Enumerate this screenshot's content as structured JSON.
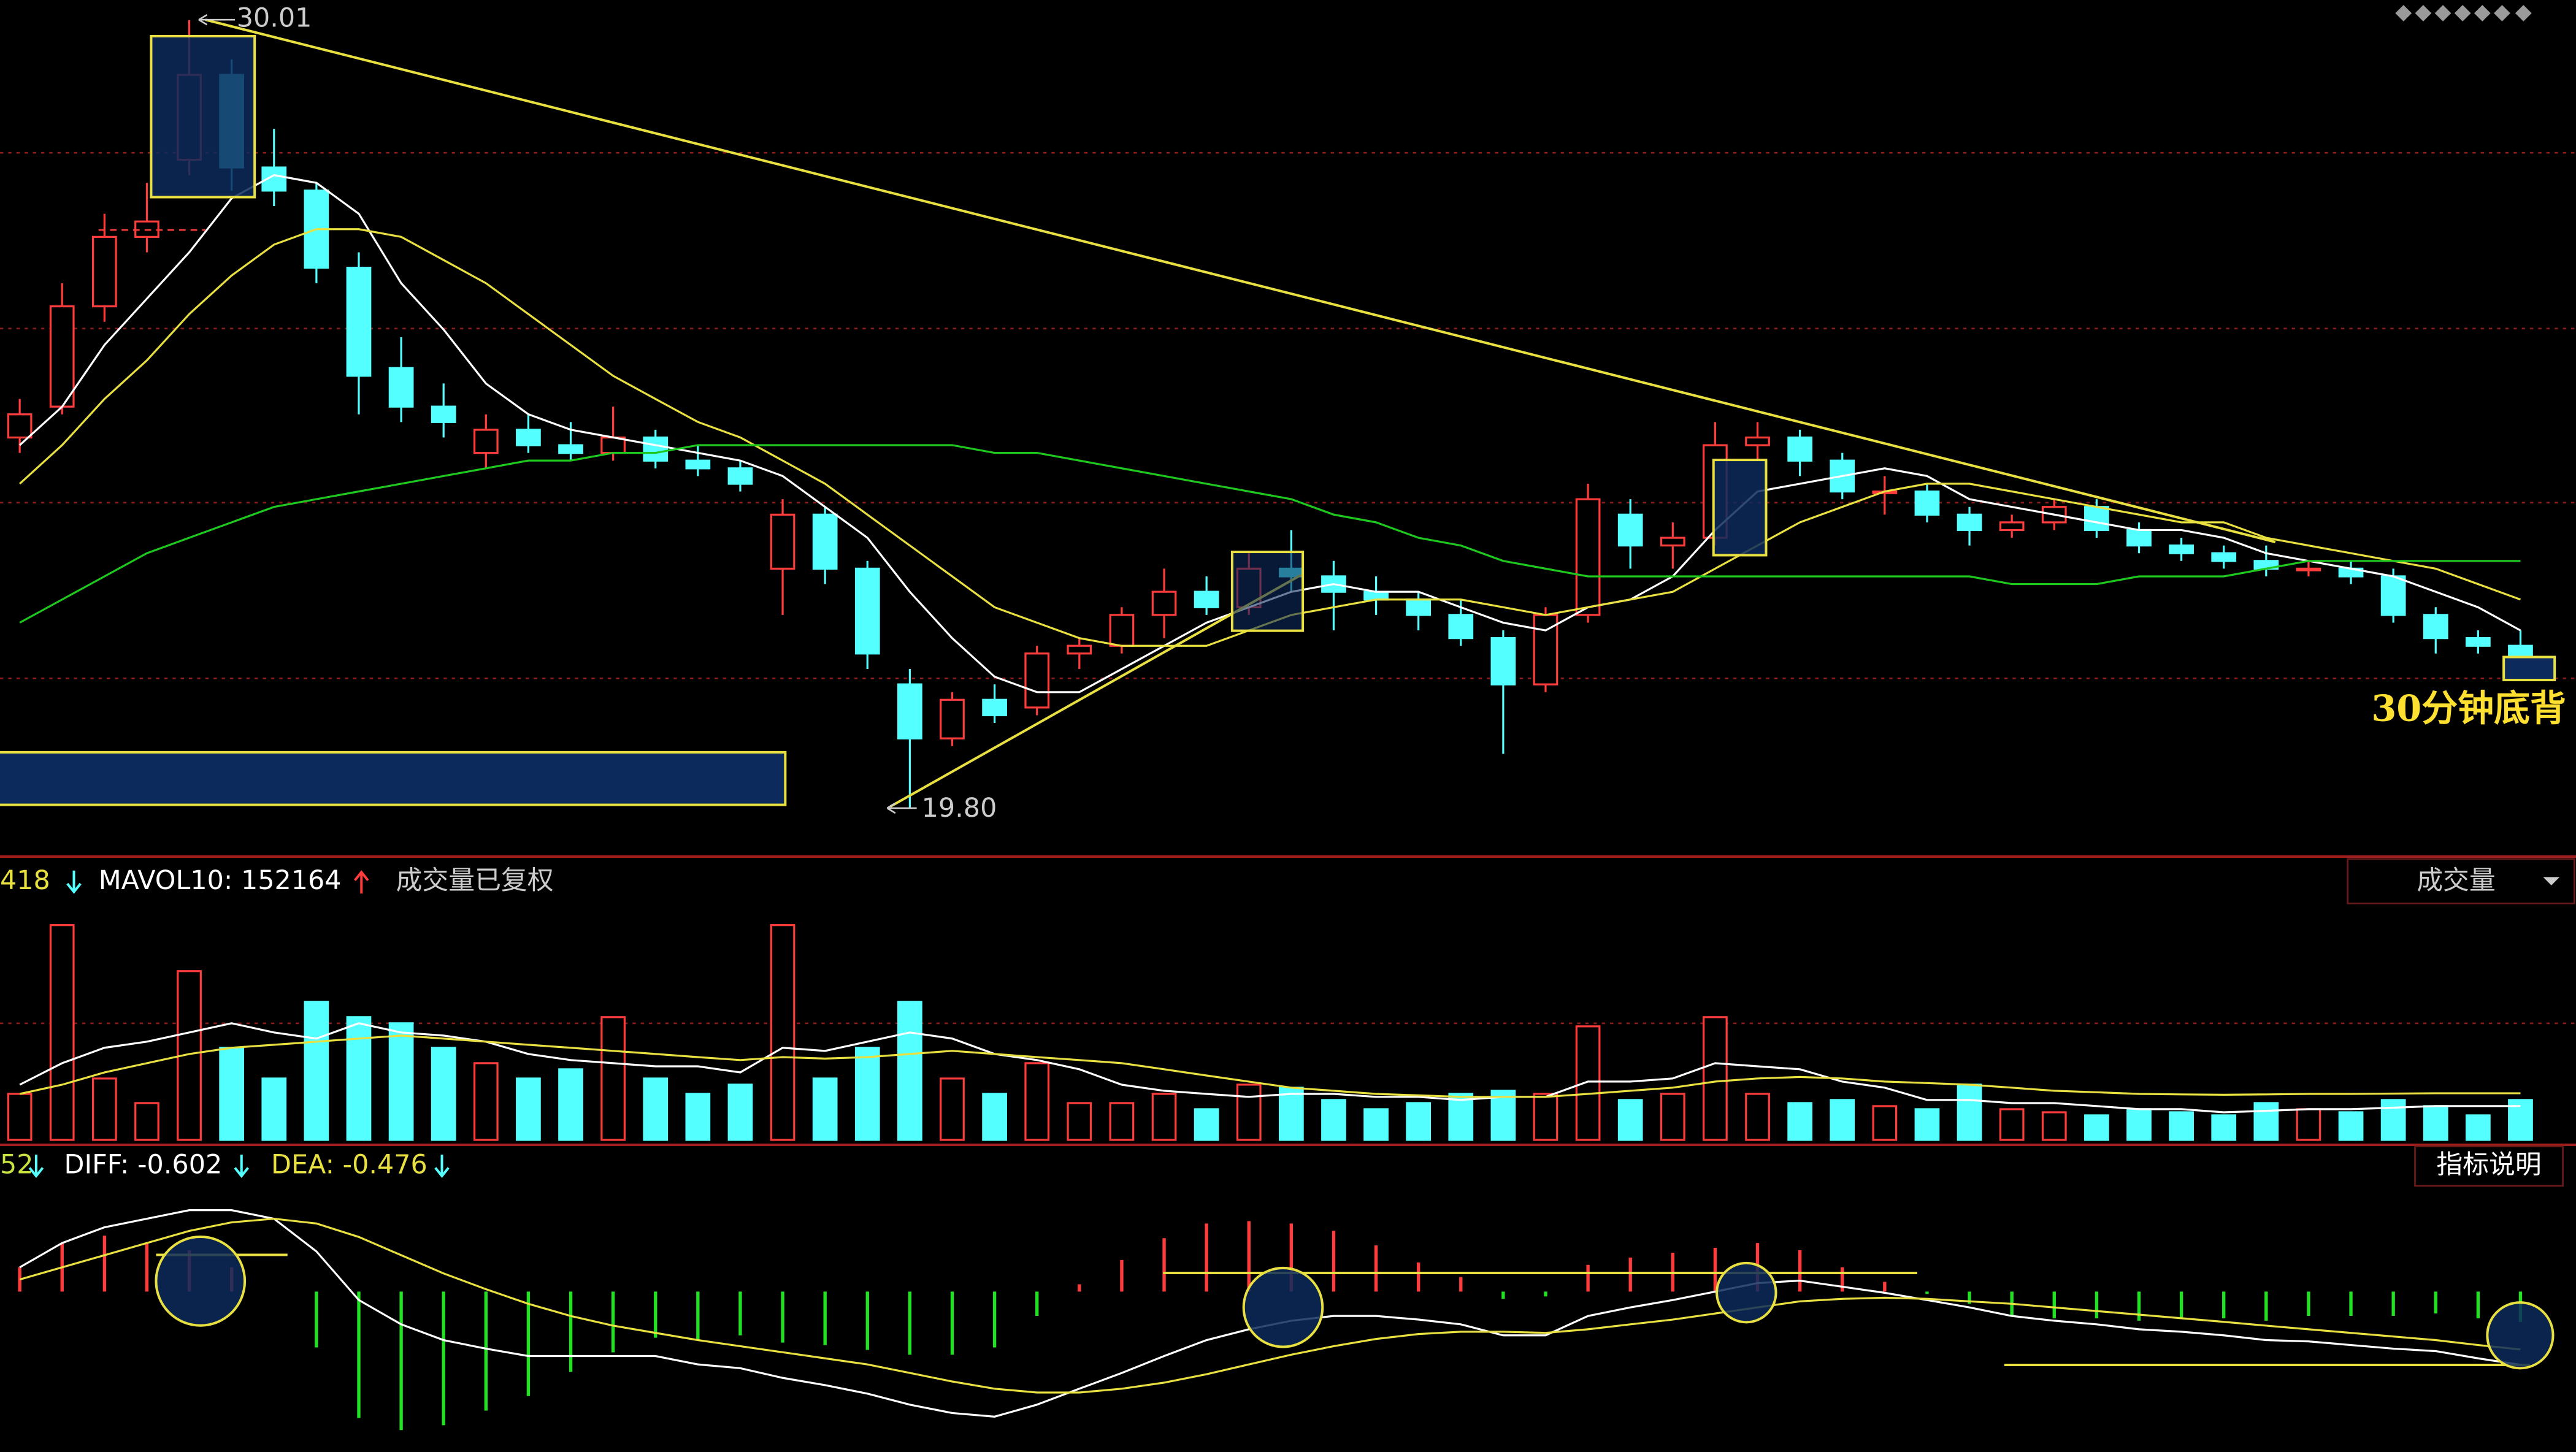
{
  "chart_data": [
    {
      "type": "candlestick",
      "up_color": "#ff3c3c",
      "down_color": "#54ffff",
      "ylim": [
        19.2,
        30.27
      ],
      "values": [
        [
          24.6,
          25.1,
          24.4,
          24.9
        ],
        [
          25.0,
          26.6,
          24.9,
          26.3
        ],
        [
          26.3,
          27.5,
          26.1,
          27.2
        ],
        [
          27.2,
          27.9,
          27.0,
          27.4
        ],
        [
          28.2,
          30.01,
          28.0,
          29.3
        ],
        [
          29.3,
          29.5,
          27.8,
          28.1
        ],
        [
          28.1,
          28.6,
          27.6,
          27.8
        ],
        [
          27.8,
          27.9,
          26.6,
          26.8
        ],
        [
          26.8,
          27.0,
          24.9,
          25.4
        ],
        [
          25.5,
          25.9,
          24.8,
          25.0
        ],
        [
          25.0,
          25.3,
          24.6,
          24.8
        ],
        [
          24.4,
          24.9,
          24.2,
          24.7
        ],
        [
          24.7,
          24.9,
          24.4,
          24.5
        ],
        [
          24.5,
          24.8,
          24.3,
          24.4
        ],
        [
          24.4,
          25.0,
          24.3,
          24.6
        ],
        [
          24.6,
          24.7,
          24.2,
          24.3
        ],
        [
          24.3,
          24.5,
          24.1,
          24.2
        ],
        [
          24.2,
          24.3,
          23.9,
          24.0
        ],
        [
          22.9,
          23.8,
          22.3,
          23.6
        ],
        [
          23.6,
          23.7,
          22.7,
          22.9
        ],
        [
          22.9,
          23.0,
          21.6,
          21.8
        ],
        [
          21.4,
          21.6,
          19.8,
          20.7
        ],
        [
          20.7,
          21.3,
          20.6,
          21.2
        ],
        [
          21.2,
          21.4,
          20.9,
          21.0
        ],
        [
          21.1,
          21.9,
          21.0,
          21.8
        ],
        [
          21.8,
          22.0,
          21.6,
          21.9
        ],
        [
          21.9,
          22.4,
          21.8,
          22.3
        ],
        [
          22.3,
          22.9,
          22.0,
          22.6
        ],
        [
          22.6,
          22.8,
          22.3,
          22.4
        ],
        [
          22.4,
          23.1,
          22.3,
          22.9
        ],
        [
          22.9,
          23.4,
          22.6,
          22.8
        ],
        [
          22.8,
          23.0,
          22.1,
          22.6
        ],
        [
          22.6,
          22.8,
          22.3,
          22.5
        ],
        [
          22.5,
          22.6,
          22.1,
          22.3
        ],
        [
          22.3,
          22.5,
          21.9,
          22.0
        ],
        [
          22.0,
          22.1,
          20.5,
          21.4
        ],
        [
          21.4,
          22.4,
          21.3,
          22.3
        ],
        [
          22.3,
          24.0,
          22.2,
          23.8
        ],
        [
          23.6,
          23.8,
          22.9,
          23.2
        ],
        [
          23.2,
          23.5,
          22.9,
          23.3
        ],
        [
          23.3,
          24.8,
          23.2,
          24.5
        ],
        [
          24.5,
          24.8,
          24.3,
          24.6
        ],
        [
          24.6,
          24.7,
          24.1,
          24.3
        ],
        [
          24.3,
          24.4,
          23.8,
          23.9
        ],
        [
          23.9,
          24.1,
          23.6,
          23.9
        ],
        [
          23.9,
          24.0,
          23.5,
          23.6
        ],
        [
          23.6,
          23.7,
          23.2,
          23.4
        ],
        [
          23.4,
          23.6,
          23.3,
          23.5
        ],
        [
          23.5,
          23.8,
          23.4,
          23.7
        ],
        [
          23.7,
          23.8,
          23.3,
          23.4
        ],
        [
          23.4,
          23.5,
          23.1,
          23.2
        ],
        [
          23.2,
          23.3,
          23.0,
          23.1
        ],
        [
          23.1,
          23.2,
          22.9,
          23.0
        ],
        [
          23.0,
          23.2,
          22.8,
          22.9
        ],
        [
          22.9,
          23.0,
          22.8,
          22.9
        ],
        [
          22.9,
          23.0,
          22.7,
          22.8
        ],
        [
          22.8,
          22.9,
          22.2,
          22.3
        ],
        [
          22.3,
          22.4,
          21.8,
          22.0
        ],
        [
          22.0,
          22.1,
          21.8,
          21.9
        ],
        [
          21.9,
          22.1,
          21.5,
          21.6
        ]
      ],
      "lines": [
        {
          "color": "#ffffff",
          "values": [
            24.5,
            25.0,
            25.8,
            26.4,
            27.0,
            27.7,
            28.0,
            27.9,
            27.5,
            26.6,
            26.0,
            25.3,
            24.9,
            24.7,
            24.6,
            24.5,
            24.4,
            24.3,
            24.1,
            23.7,
            23.3,
            22.6,
            22.0,
            21.5,
            21.3,
            21.3,
            21.6,
            21.9,
            22.2,
            22.4,
            22.6,
            22.7,
            22.6,
            22.6,
            22.4,
            22.2,
            22.1,
            22.4,
            22.5,
            22.8,
            23.4,
            23.9,
            24.0,
            24.1,
            24.2,
            24.1,
            23.8,
            23.7,
            23.6,
            23.5,
            23.4,
            23.4,
            23.3,
            23.1,
            23.0,
            22.9,
            22.8,
            22.6,
            22.4,
            22.1
          ]
        },
        {
          "color": "#e8e040",
          "values": [
            24.0,
            24.5,
            25.1,
            25.6,
            26.2,
            26.7,
            27.1,
            27.3,
            27.3,
            27.2,
            26.9,
            26.6,
            26.2,
            25.8,
            25.4,
            25.1,
            24.8,
            24.6,
            24.3,
            24.0,
            23.6,
            23.2,
            22.8,
            22.4,
            22.2,
            22.0,
            21.9,
            21.9,
            21.9,
            22.1,
            22.3,
            22.4,
            22.5,
            22.5,
            22.5,
            22.4,
            22.3,
            22.4,
            22.5,
            22.6,
            22.9,
            23.2,
            23.5,
            23.7,
            23.9,
            24.0,
            24.0,
            23.9,
            23.8,
            23.7,
            23.6,
            23.5,
            23.5,
            23.3,
            23.2,
            23.1,
            23.0,
            22.9,
            22.7,
            22.5
          ]
        },
        {
          "color": "#1ec81e",
          "values": [
            22.2,
            22.5,
            22.8,
            23.1,
            23.3,
            23.5,
            23.7,
            23.8,
            23.9,
            24.0,
            24.1,
            24.2,
            24.3,
            24.3,
            24.4,
            24.4,
            24.5,
            24.5,
            24.5,
            24.5,
            24.5,
            24.5,
            24.5,
            24.4,
            24.4,
            24.3,
            24.2,
            24.1,
            24.0,
            23.9,
            23.8,
            23.6,
            23.5,
            23.3,
            23.2,
            23.0,
            22.9,
            22.8,
            22.8,
            22.8,
            22.8,
            22.8,
            22.8,
            22.8,
            22.8,
            22.8,
            22.8,
            22.7,
            22.7,
            22.7,
            22.8,
            22.8,
            22.8,
            22.9,
            23.0,
            23.0,
            23.0,
            23.0,
            23.0,
            23.0
          ]
        }
      ],
      "high_label": "30.01",
      "low_label": "19.80",
      "annotation": "30分钟底背"
    },
    {
      "type": "bar",
      "header": [
        "418",
        "MAVOL10: 152164",
        "成交量已复权"
      ],
      "button": "成交量",
      "ylim": [
        0,
        760000
      ],
      "values": [
        150000,
        700000,
        200000,
        120000,
        550000,
        300000,
        200000,
        450000,
        400000,
        380000,
        300000,
        250000,
        200000,
        230000,
        400000,
        200000,
        150000,
        180000,
        700000,
        200000,
        300000,
        450000,
        200000,
        150000,
        250000,
        120000,
        120000,
        150000,
        100000,
        180000,
        170000,
        130000,
        100000,
        120000,
        150000,
        160000,
        150000,
        370000,
        130000,
        150000,
        400000,
        150000,
        120000,
        130000,
        110000,
        100000,
        180000,
        100000,
        90000,
        80000,
        100000,
        90000,
        80000,
        120000,
        100000,
        90000,
        130000,
        110000,
        80000,
        130000
      ],
      "lines": [
        {
          "color": "#ffffff",
          "values": [
            180000,
            250000,
            300000,
            320000,
            350000,
            380000,
            350000,
            330000,
            380000,
            350000,
            340000,
            320000,
            280000,
            260000,
            250000,
            240000,
            240000,
            220000,
            300000,
            290000,
            320000,
            350000,
            330000,
            280000,
            260000,
            230000,
            180000,
            160000,
            150000,
            140000,
            150000,
            150000,
            140000,
            140000,
            130000,
            140000,
            140000,
            190000,
            190000,
            200000,
            250000,
            240000,
            230000,
            190000,
            170000,
            130000,
            130000,
            120000,
            120000,
            110000,
            100000,
            100000,
            90000,
            95000,
            100000,
            100000,
            105000,
            110000,
            110000,
            110000
          ]
        },
        {
          "color": "#e8e040",
          "values": [
            150000,
            180000,
            220000,
            250000,
            280000,
            300000,
            310000,
            320000,
            330000,
            340000,
            330000,
            320000,
            310000,
            300000,
            290000,
            280000,
            270000,
            260000,
            270000,
            265000,
            270000,
            280000,
            290000,
            280000,
            270000,
            260000,
            250000,
            230000,
            210000,
            190000,
            170000,
            160000,
            150000,
            145000,
            140000,
            140000,
            140000,
            150000,
            160000,
            170000,
            190000,
            200000,
            205000,
            200000,
            190000,
            185000,
            180000,
            170000,
            160000,
            155000,
            150000,
            148000,
            147000,
            148000,
            150000,
            150000,
            151000,
            152000,
            152000,
            152164
          ]
        }
      ]
    },
    {
      "type": "macd",
      "header": [
        "52",
        "DIFF: -0.602",
        "DEA: -0.476"
      ],
      "button": "指标说明",
      "ylim": [
        -1.32,
        0.87
      ],
      "up_color": "#ff3c3c",
      "down_color": "#22e022",
      "values": [
        0.2,
        0.4,
        0.46,
        0.4,
        0.34,
        0.2,
        0.0,
        -0.46,
        -1.04,
        -1.14,
        -1.1,
        -0.98,
        -0.86,
        -0.66,
        -0.5,
        -0.38,
        -0.4,
        -0.36,
        -0.42,
        -0.44,
        -0.48,
        -0.52,
        -0.52,
        -0.46,
        -0.2,
        0.06,
        0.26,
        0.44,
        0.56,
        0.58,
        0.56,
        0.5,
        0.38,
        0.24,
        0.12,
        -0.06,
        -0.04,
        0.22,
        0.28,
        0.32,
        0.36,
        0.4,
        0.34,
        0.2,
        0.08,
        -0.02,
        -0.1,
        -0.2,
        -0.22,
        -0.22,
        -0.24,
        -0.22,
        -0.22,
        -0.24,
        -0.2,
        -0.2,
        -0.2,
        -0.18,
        -0.22,
        -0.25
      ],
      "lines": [
        {
          "color": "#ffffff",
          "values": [
            0.2,
            0.4,
            0.53,
            0.6,
            0.67,
            0.67,
            0.6,
            0.33,
            -0.07,
            -0.27,
            -0.4,
            -0.47,
            -0.53,
            -0.53,
            -0.53,
            -0.53,
            -0.6,
            -0.63,
            -0.71,
            -0.77,
            -0.84,
            -0.93,
            -1.0,
            -1.03,
            -0.93,
            -0.8,
            -0.67,
            -0.53,
            -0.4,
            -0.31,
            -0.24,
            -0.2,
            -0.2,
            -0.23,
            -0.27,
            -0.36,
            -0.36,
            -0.2,
            -0.13,
            -0.07,
            0.0,
            0.07,
            0.09,
            0.04,
            -0.01,
            -0.07,
            -0.13,
            -0.2,
            -0.24,
            -0.27,
            -0.31,
            -0.33,
            -0.36,
            -0.4,
            -0.41,
            -0.44,
            -0.47,
            -0.49,
            -0.55,
            -0.602
          ]
        },
        {
          "color": "#e8e040",
          "values": [
            0.1,
            0.2,
            0.3,
            0.4,
            0.5,
            0.57,
            0.6,
            0.56,
            0.45,
            0.3,
            0.15,
            0.02,
            -0.1,
            -0.2,
            -0.28,
            -0.34,
            -0.4,
            -0.45,
            -0.5,
            -0.55,
            -0.6,
            -0.67,
            -0.74,
            -0.8,
            -0.83,
            -0.83,
            -0.8,
            -0.75,
            -0.68,
            -0.6,
            -0.52,
            -0.45,
            -0.39,
            -0.35,
            -0.33,
            -0.33,
            -0.34,
            -0.31,
            -0.27,
            -0.23,
            -0.18,
            -0.13,
            -0.08,
            -0.06,
            -0.05,
            -0.06,
            -0.08,
            -0.1,
            -0.13,
            -0.16,
            -0.19,
            -0.22,
            -0.25,
            -0.28,
            -0.31,
            -0.34,
            -0.37,
            -0.4,
            -0.44,
            -0.476
          ]
        }
      ]
    }
  ]
}
